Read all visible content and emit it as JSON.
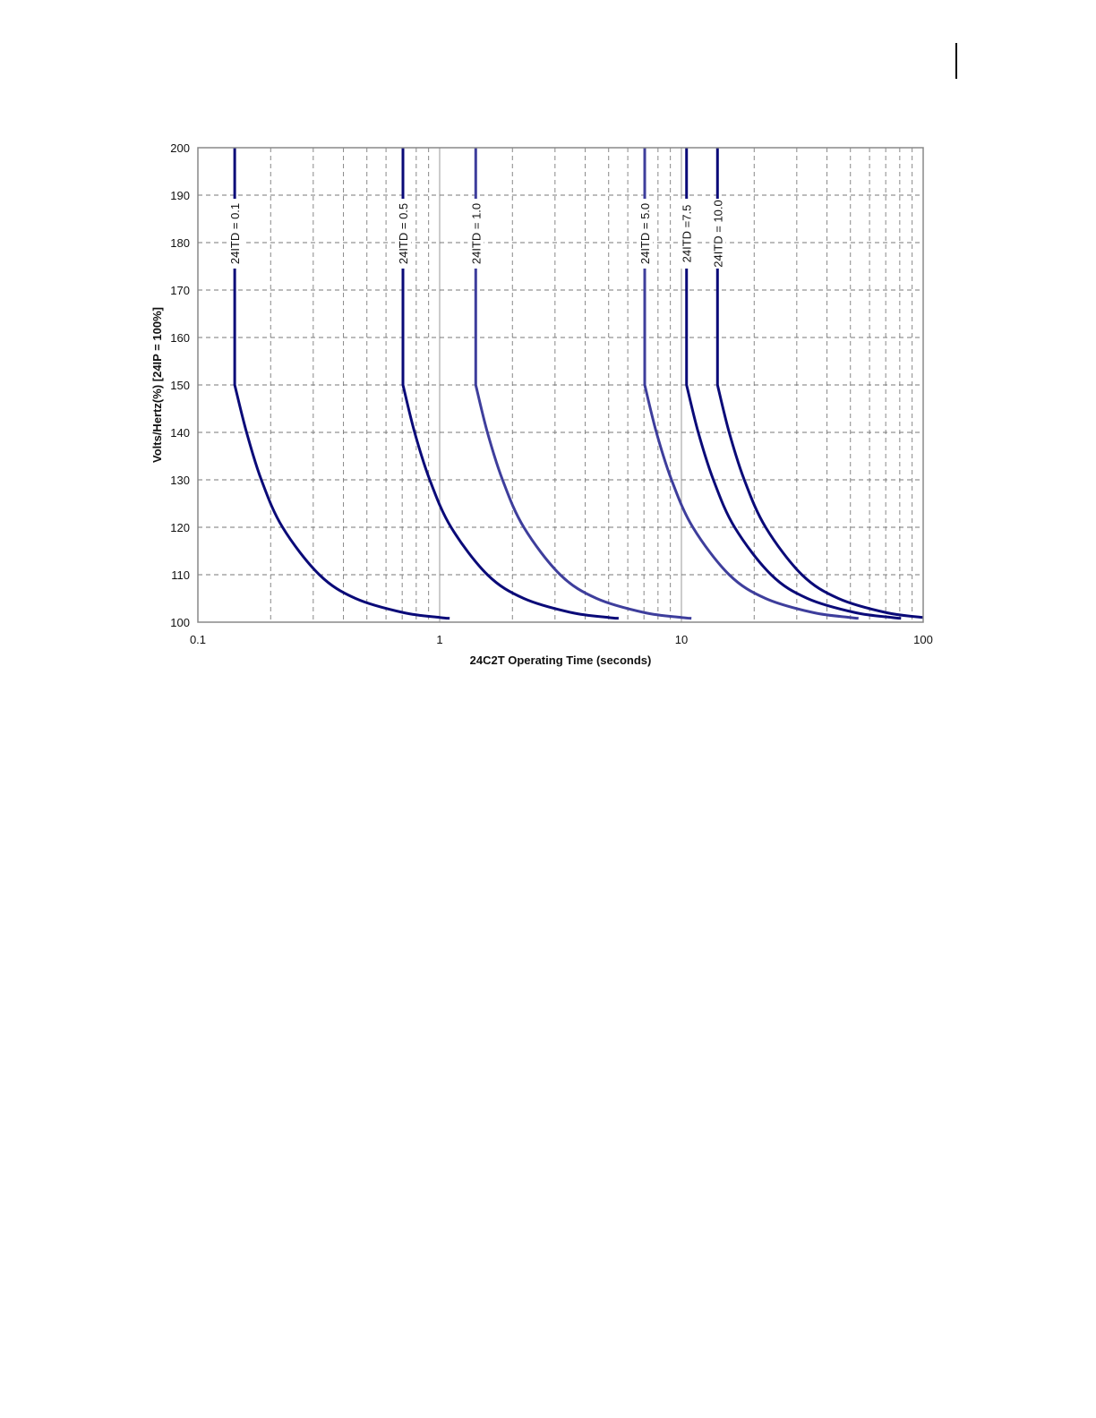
{
  "chart_data": {
    "type": "line",
    "title": "",
    "xlabel": "24C2T Operating Time (seconds)",
    "ylabel": "Volts/Hertz(%)  [24IP = 100%]",
    "xscale": "log",
    "xlim": [
      0.1,
      100
    ],
    "ylim": [
      100,
      200
    ],
    "x_ticks": [
      0.1,
      1,
      10,
      100
    ],
    "x_tick_labels": [
      "0.1",
      "1",
      "10",
      "100"
    ],
    "y_ticks": [
      100,
      110,
      120,
      130,
      140,
      150,
      160,
      170,
      180,
      190,
      200
    ],
    "y_tick_labels": [
      "100",
      "110",
      "120",
      "130",
      "140",
      "150",
      "160",
      "170",
      "180",
      "190",
      "200"
    ],
    "grid": true,
    "legend": "none (inline labels on curves)",
    "series": [
      {
        "name": "24ITD = 0.1",
        "color": "#0a0a78",
        "points": [
          [
            0.142,
            200
          ],
          [
            0.142,
            150
          ],
          [
            0.159,
            140
          ],
          [
            0.183,
            130
          ],
          [
            0.224,
            120
          ],
          [
            0.318,
            110
          ],
          [
            0.449,
            105
          ],
          [
            0.71,
            102
          ],
          [
            1.0,
            101
          ],
          [
            1.1,
            100.8
          ]
        ]
      },
      {
        "name": "24ITD = 0.5",
        "color": "#0a0a78",
        "points": [
          [
            0.705,
            200
          ],
          [
            0.705,
            150
          ],
          [
            0.788,
            140
          ],
          [
            0.91,
            130
          ],
          [
            1.115,
            120
          ],
          [
            1.576,
            110
          ],
          [
            2.229,
            105
          ],
          [
            3.525,
            102
          ],
          [
            4.98,
            101
          ],
          [
            5.5,
            100.8
          ]
        ]
      },
      {
        "name": "24ITD = 1.0",
        "color": "#3e3e9c",
        "points": [
          [
            1.41,
            200
          ],
          [
            1.41,
            150
          ],
          [
            1.576,
            140
          ],
          [
            1.82,
            130
          ],
          [
            2.229,
            120
          ],
          [
            3.153,
            110
          ],
          [
            4.459,
            105
          ],
          [
            7.05,
            102
          ],
          [
            9.97,
            101
          ],
          [
            11,
            100.8
          ]
        ]
      },
      {
        "name": "24ITD = 5.0",
        "color": "#3e3e9c",
        "points": [
          [
            7.05,
            200
          ],
          [
            7.05,
            150
          ],
          [
            7.88,
            140
          ],
          [
            9.1,
            130
          ],
          [
            11.15,
            120
          ],
          [
            15.76,
            110
          ],
          [
            22.29,
            105
          ],
          [
            35.25,
            102
          ],
          [
            49.8,
            101
          ],
          [
            54,
            100.8
          ]
        ]
      },
      {
        "name": "24ITD =7.5",
        "color": "#0a0a78",
        "points": [
          [
            10.5,
            200
          ],
          [
            10.5,
            150
          ],
          [
            11.74,
            140
          ],
          [
            13.56,
            130
          ],
          [
            16.6,
            120
          ],
          [
            23.5,
            110
          ],
          [
            33.2,
            105
          ],
          [
            52.5,
            102
          ],
          [
            74.2,
            101
          ],
          [
            81,
            100.8
          ]
        ]
      },
      {
        "name": "24ITD = 10.0",
        "color": "#0a0a78",
        "points": [
          [
            14.1,
            200
          ],
          [
            14.1,
            150
          ],
          [
            15.76,
            140
          ],
          [
            18.2,
            130
          ],
          [
            22.3,
            120
          ],
          [
            31.5,
            110
          ],
          [
            44.6,
            105
          ],
          [
            70.5,
            102
          ],
          [
            100,
            101
          ]
        ]
      }
    ]
  }
}
